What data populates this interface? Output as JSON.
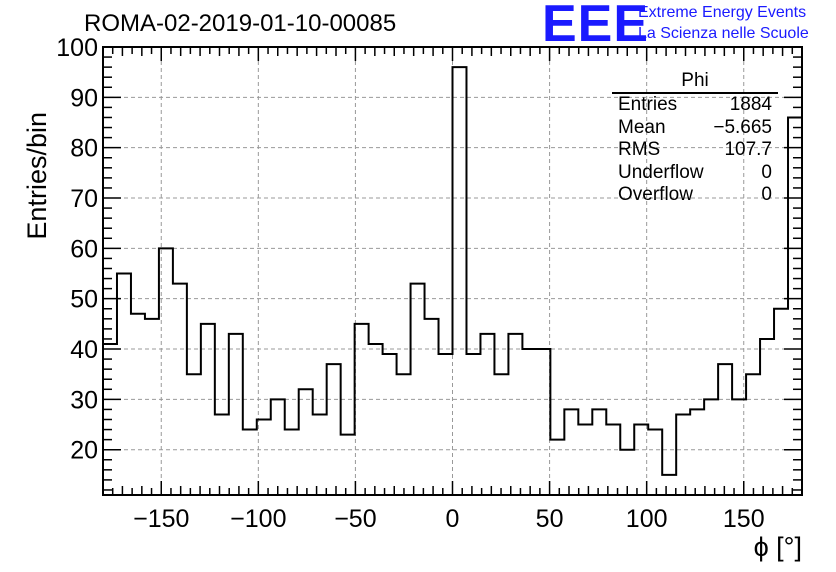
{
  "chart_data": {
    "type": "bar",
    "title": "ROMA-02-2019-01-10-00085",
    "xlabel": "ϕ [°]",
    "ylabel": "Entries/bin",
    "xlim": [
      -180,
      180
    ],
    "ylim": [
      11,
      100
    ],
    "grid": true,
    "bin_width": 7.2,
    "x_ticks": [
      -150,
      -100,
      -50,
      0,
      50,
      100,
      150
    ],
    "y_ticks": [
      20,
      30,
      40,
      50,
      60,
      70,
      80,
      90,
      100
    ],
    "series": [
      {
        "name": "Phi",
        "values": [
          41,
          55,
          47,
          46,
          60,
          53,
          35,
          45,
          27,
          43,
          24,
          26,
          30,
          24,
          32,
          27,
          37,
          23,
          45,
          41,
          39,
          35,
          53,
          46,
          39,
          96,
          39,
          43,
          35,
          43,
          40,
          40,
          22,
          28,
          25,
          28,
          25,
          20,
          25,
          24,
          15,
          27,
          28,
          30,
          37,
          30,
          35,
          42,
          48,
          86
        ]
      }
    ],
    "stats": {
      "header": "Phi",
      "rows": [
        {
          "label": "Entries",
          "value": "1884"
        },
        {
          "label": "Mean",
          "value": "−5.665"
        },
        {
          "label": "RMS",
          "value": "107.7"
        },
        {
          "label": "Underflow",
          "value": "0"
        },
        {
          "label": "Overflow",
          "value": "0"
        }
      ]
    }
  },
  "branding": {
    "logo": "EEE",
    "line1": "Extreme Energy Events",
    "line2": "La Scienza nelle Scuole",
    "color": "#1a1aff"
  }
}
